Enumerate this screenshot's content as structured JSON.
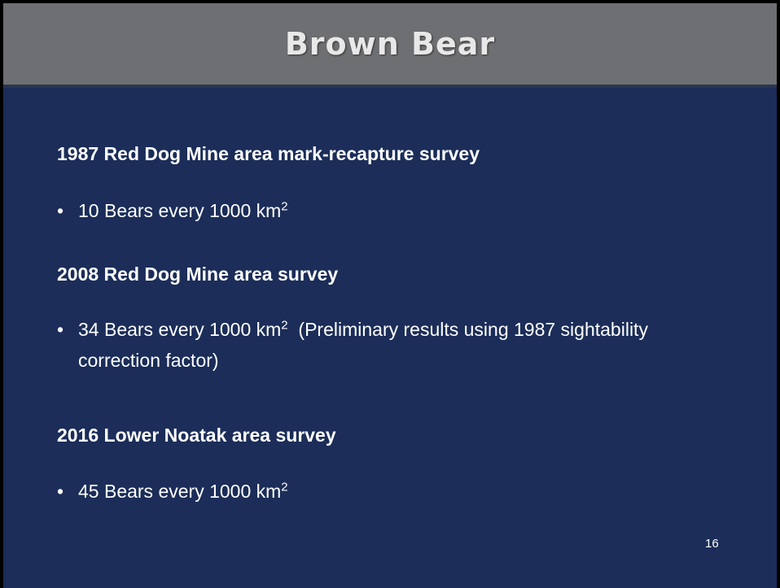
{
  "header": {
    "title": "Brown Bear"
  },
  "sections": [
    {
      "heading": "1987 Red Dog Mine area mark-recapture survey",
      "bullet": {
        "text": "10 Bears every 1000 km",
        "sup": "2"
      }
    },
    {
      "heading": "2008 Red Dog Mine area survey",
      "bullet": {
        "text": "34 Bears every 1000 km",
        "sup": "2",
        "rest": "(Preliminary results using 1987 sightability correction factor)"
      }
    },
    {
      "heading": "2016 Lower Noatak area survey",
      "bullet": {
        "text": "45 Bears every 1000 km",
        "sup": "2"
      }
    }
  ],
  "footer": {
    "page_number": "16"
  }
}
